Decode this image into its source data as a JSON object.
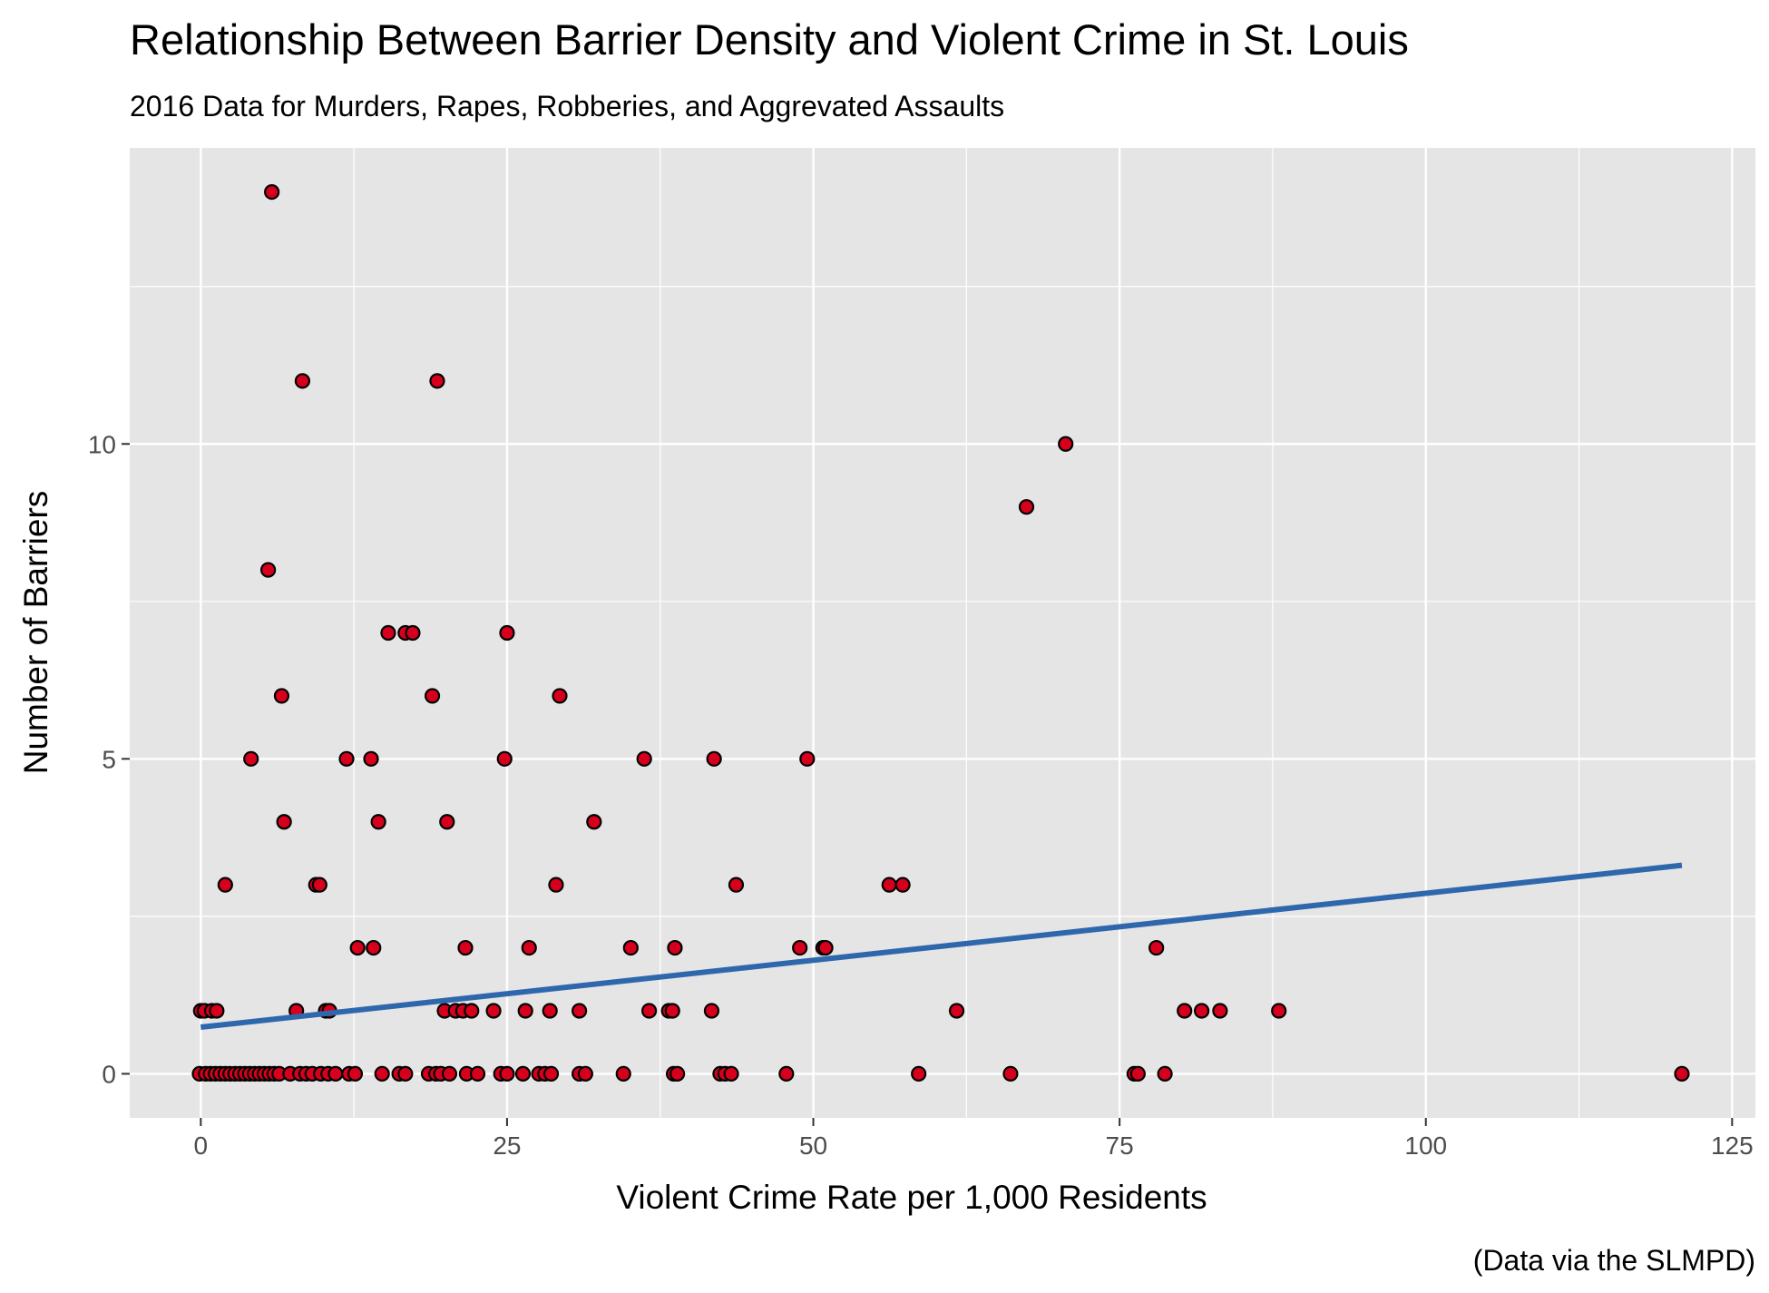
{
  "chart_data": {
    "type": "scatter",
    "title": "Relationship Between Barrier Density and Violent Crime in St. Louis",
    "subtitle": "2016 Data for Murders, Rapes, Robberies, and Aggrevated Assaults",
    "caption": "(Data via the SLMPD)",
    "xlabel": "Violent Crime Rate per 1,000 Residents",
    "ylabel": "Number of Barriers",
    "xlim": [
      -5.8,
      126.9
    ],
    "ylim": [
      -0.7,
      14.7
    ],
    "x_ticks": [
      0,
      25,
      50,
      75,
      100,
      125
    ],
    "y_ticks": [
      0,
      5,
      10
    ],
    "grid": true,
    "colors": {
      "panel_background": "#e5e5e5",
      "point_fill": "#d7001c",
      "point_stroke": "#000000",
      "trend_line": "#2f67ad"
    },
    "points": [
      [
        0,
        1
      ],
      [
        0.3,
        1
      ],
      [
        0.9,
        1
      ],
      [
        1.3,
        1
      ],
      [
        2.0,
        3
      ],
      [
        4.1,
        5
      ],
      [
        5.5,
        8
      ],
      [
        5.8,
        14
      ],
      [
        6.6,
        6
      ],
      [
        6.8,
        4
      ],
      [
        7.8,
        1
      ],
      [
        9.4,
        3
      ],
      [
        9.7,
        3
      ],
      [
        10.2,
        1
      ],
      [
        10.5,
        1
      ],
      [
        11.9,
        5
      ],
      [
        12.8,
        2
      ],
      [
        13.9,
        5
      ],
      [
        14.1,
        2
      ],
      [
        14.5,
        4
      ],
      [
        15.3,
        7
      ],
      [
        16.7,
        7
      ],
      [
        17.3,
        7
      ],
      [
        18.9,
        6
      ],
      [
        19.3,
        11
      ],
      [
        8.3,
        11
      ],
      [
        20.1,
        4
      ],
      [
        19.9,
        1
      ],
      [
        20.8,
        1
      ],
      [
        21.4,
        1
      ],
      [
        21.6,
        2
      ],
      [
        22.1,
        1
      ],
      [
        23.9,
        1
      ],
      [
        24.8,
        5
      ],
      [
        25.0,
        7
      ],
      [
        26.5,
        1
      ],
      [
        26.8,
        2
      ],
      [
        28.5,
        1
      ],
      [
        29.0,
        3
      ],
      [
        29.3,
        6
      ],
      [
        30.9,
        1
      ],
      [
        32.1,
        4
      ],
      [
        35.1,
        2
      ],
      [
        36.2,
        5
      ],
      [
        36.6,
        1
      ],
      [
        38.2,
        1
      ],
      [
        38.5,
        1
      ],
      [
        38.7,
        2
      ],
      [
        41.7,
        1
      ],
      [
        41.9,
        5
      ],
      [
        43.7,
        3
      ],
      [
        48.9,
        2
      ],
      [
        49.5,
        5
      ],
      [
        50.8,
        2
      ],
      [
        51.0,
        2
      ],
      [
        56.2,
        3
      ],
      [
        57.3,
        3
      ],
      [
        61.7,
        1
      ],
      [
        67.4,
        9
      ],
      [
        70.6,
        10
      ],
      [
        78.0,
        2
      ],
      [
        80.3,
        1
      ],
      [
        81.7,
        1
      ],
      [
        83.2,
        1
      ],
      [
        88.0,
        1
      ],
      [
        -0.1,
        0
      ],
      [
        0.4,
        0
      ],
      [
        0.8,
        0
      ],
      [
        1.2,
        0
      ],
      [
        1.6,
        0
      ],
      [
        2.0,
        0
      ],
      [
        2.4,
        0
      ],
      [
        2.8,
        0
      ],
      [
        3.2,
        0
      ],
      [
        3.6,
        0
      ],
      [
        4.0,
        0
      ],
      [
        4.4,
        0
      ],
      [
        4.8,
        0
      ],
      [
        5.2,
        0
      ],
      [
        5.6,
        0
      ],
      [
        6.0,
        0
      ],
      [
        6.4,
        0
      ],
      [
        7.3,
        0
      ],
      [
        8.1,
        0
      ],
      [
        8.6,
        0
      ],
      [
        9.1,
        0
      ],
      [
        9.8,
        0
      ],
      [
        10.4,
        0
      ],
      [
        11.0,
        0
      ],
      [
        12.1,
        0
      ],
      [
        12.6,
        0
      ],
      [
        14.8,
        0
      ],
      [
        16.2,
        0
      ],
      [
        16.7,
        0
      ],
      [
        18.6,
        0
      ],
      [
        19.2,
        0
      ],
      [
        19.6,
        0
      ],
      [
        20.3,
        0
      ],
      [
        21.7,
        0
      ],
      [
        22.6,
        0
      ],
      [
        24.5,
        0
      ],
      [
        25.0,
        0
      ],
      [
        26.3,
        0
      ],
      [
        27.6,
        0
      ],
      [
        28.1,
        0
      ],
      [
        28.6,
        0
      ],
      [
        30.9,
        0
      ],
      [
        31.4,
        0
      ],
      [
        34.5,
        0
      ],
      [
        38.6,
        0
      ],
      [
        38.9,
        0
      ],
      [
        42.4,
        0
      ],
      [
        42.8,
        0
      ],
      [
        43.3,
        0
      ],
      [
        47.8,
        0
      ],
      [
        58.6,
        0
      ],
      [
        66.1,
        0
      ],
      [
        76.2,
        0
      ],
      [
        76.5,
        0
      ],
      [
        78.7,
        0
      ],
      [
        120.9,
        0
      ]
    ],
    "trend_line": [
      [
        0,
        0.74
      ],
      [
        120.9,
        3.31
      ]
    ]
  }
}
